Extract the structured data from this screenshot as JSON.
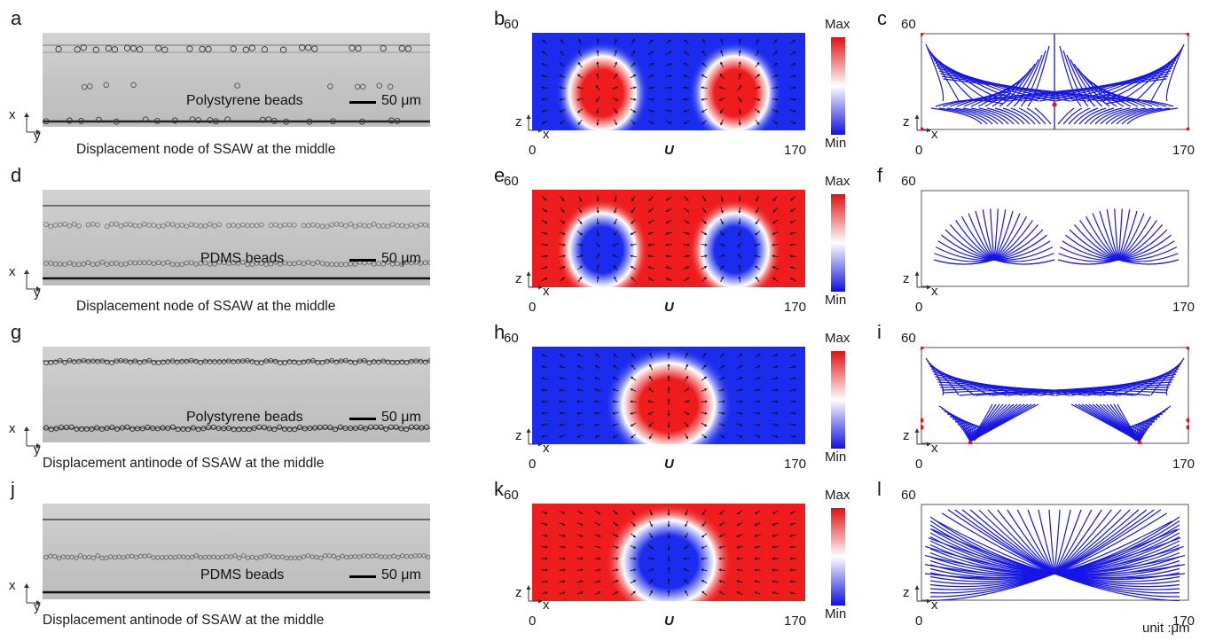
{
  "rows": [
    {
      "micro_label": "a",
      "sim_label": "b",
      "stream_label": "c",
      "bead_type": "Polystyrene beads",
      "scale": "50 μm",
      "caption": "Displacement node of SSAW at the middle",
      "field": "node",
      "trajectory": "node-poly"
    },
    {
      "micro_label": "d",
      "sim_label": "e",
      "stream_label": "f",
      "bead_type": "PDMS beads",
      "scale": "50 μm",
      "caption": "Displacement node of SSAW at the middle",
      "field": "node-inverse",
      "trajectory": "node-pdms"
    },
    {
      "micro_label": "g",
      "sim_label": "h",
      "stream_label": "i",
      "bead_type": "Polystyrene beads",
      "scale": "50 μm",
      "caption": "Displacement antinode of SSAW at the middle",
      "field": "antinode",
      "trajectory": "antinode-poly"
    },
    {
      "micro_label": "j",
      "sim_label": "k",
      "stream_label": "l",
      "bead_type": "PDMS beads",
      "scale": "50 μm",
      "caption": "Displacement antinode of SSAW at the middle",
      "field": "antinode-inverse",
      "trajectory": "antinode-pdms"
    }
  ],
  "axes": {
    "x_label": "x",
    "y_label": "y",
    "z_label": "z",
    "x_min": "0",
    "x_max": "170",
    "z_max": "60",
    "u_label": "U",
    "cbar_max": "Max",
    "cbar_min": "Min"
  },
  "unit_note": "unit :μm",
  "colors": {
    "high": "#ee1c1c",
    "mid": "#ffffff",
    "low": "#1c2cee",
    "stream": "#1515e6",
    "node": "#e01818"
  }
}
